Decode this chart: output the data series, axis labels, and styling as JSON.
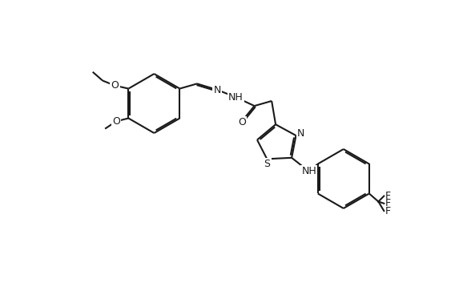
{
  "background_color": "#ffffff",
  "line_color": "#1a1a1a",
  "line_width": 1.5,
  "font_size": 9,
  "figsize": [
    5.73,
    3.63
  ],
  "dpi": 100,
  "atoms": {
    "O_ether_label": "O",
    "O_methoxy_label": "O",
    "N_imine_label": "N",
    "NH_hydrazide_label": "NH",
    "O_carbonyl_label": "O",
    "S_thiazole_label": "S",
    "N_thiazole_label": "N",
    "NH_aniline_label": "NH",
    "CF3_label": "F\nF\nF"
  }
}
